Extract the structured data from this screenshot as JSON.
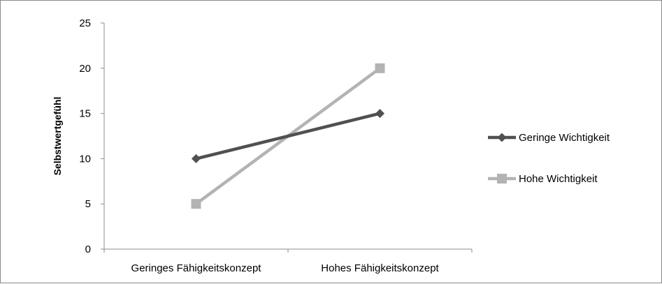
{
  "chart_data": {
    "type": "line",
    "title": "",
    "xlabel": "",
    "ylabel": "Selbstwertgefühl",
    "categories": [
      "Geringes Fähigkeitskonzept",
      "Hohes Fähigkeitskonzept"
    ],
    "ylim": [
      0,
      25
    ],
    "yticks": [
      0,
      5,
      10,
      15,
      20,
      25
    ],
    "grid": false,
    "legend_position": "right",
    "series": [
      {
        "name": "Geringe Wichtigkeit",
        "values": [
          10,
          15
        ],
        "color": "#505050",
        "marker": "diamond"
      },
      {
        "name": "Hohe Wichtigkeit",
        "values": [
          5,
          20
        ],
        "color": "#b3b3b3",
        "marker": "square"
      }
    ]
  }
}
